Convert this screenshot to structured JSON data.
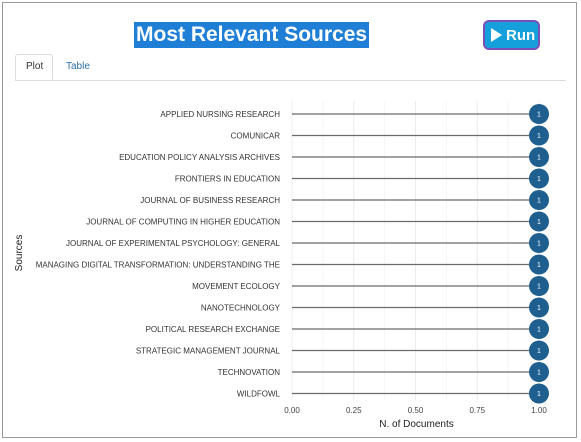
{
  "app": {
    "title": "Most Relevant Sources",
    "run_label": "Run"
  },
  "tabs": [
    {
      "label": "Plot",
      "active": true
    },
    {
      "label": "Table",
      "active": false
    }
  ],
  "colors": {
    "title_bg": "#1f7fd6",
    "point": "#1f5f8f",
    "segment": "#6b6b6b"
  },
  "chart_data": {
    "type": "scatter",
    "style": "lollipop",
    "xlabel": "N. of Documents",
    "ylabel": "Sources",
    "xlim": [
      0,
      1
    ],
    "xticks": [
      "0.00",
      "0.25",
      "0.50",
      "0.75",
      "1.00"
    ],
    "grid": true,
    "categories": [
      "APPLIED NURSING RESEARCH",
      "COMUNICAR",
      "EDUCATION POLICY ANALYSIS ARCHIVES",
      "FRONTIERS IN EDUCATION",
      "JOURNAL OF BUSINESS RESEARCH",
      "JOURNAL OF COMPUTING IN HIGHER EDUCATION",
      "JOURNAL OF EXPERIMENTAL PSYCHOLOGY: GENERAL",
      "MANAGING DIGITAL TRANSFORMATION: UNDERSTANDING THE",
      "MOVEMENT ECOLOGY",
      "NANOTECHNOLOGY",
      "POLITICAL RESEARCH EXCHANGE",
      "STRATEGIC MANAGEMENT JOURNAL",
      "TECHNOVATION",
      "WILDFOWL"
    ],
    "values": [
      1,
      1,
      1,
      1,
      1,
      1,
      1,
      1,
      1,
      1,
      1,
      1,
      1,
      1
    ],
    "point_labels": [
      "1",
      "1",
      "1",
      "1",
      "1",
      "1",
      "1",
      "1",
      "1",
      "1",
      "1",
      "1",
      "1",
      "1"
    ]
  }
}
